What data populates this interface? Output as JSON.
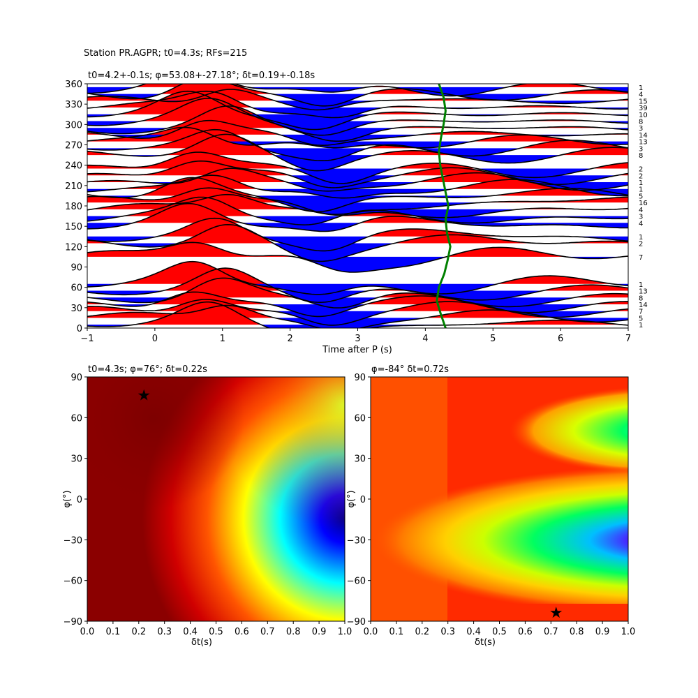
{
  "figure_title": "Station PR.AGPR; t0=4.3s; RFs=215",
  "chart_data": [
    {
      "type": "line",
      "title": "t0=4.2+-0.1s; φ=53.08+-27.18°; δt=0.19+-0.18s",
      "xlabel": "Time after P (s)",
      "ylabel": "",
      "xlim": [
        -1,
        7
      ],
      "ylim": [
        0,
        360
      ],
      "xticks": [
        "−1",
        "0",
        "1",
        "2",
        "3",
        "4",
        "5",
        "6",
        "7"
      ],
      "yticks": [
        "0",
        "30",
        "60",
        "90",
        "120",
        "150",
        "180",
        "210",
        "240",
        "270",
        "300",
        "330",
        "360"
      ],
      "positive_fill": "#ff0000",
      "negative_fill": "#0000ff",
      "trace_color": "#000000",
      "t0_curve_color": "#008000",
      "bin_backazimuths": [
        5,
        15,
        25,
        35,
        45,
        55,
        65,
        105,
        125,
        135,
        155,
        165,
        175,
        185,
        195,
        205,
        215,
        225,
        235,
        255,
        265,
        275,
        285,
        295,
        305,
        315,
        325,
        335,
        345,
        355
      ],
      "rf_counts": [
        "1",
        "5",
        "7",
        "14",
        "8",
        "13",
        "1",
        "7",
        "2",
        "1",
        "4",
        "3",
        "4",
        "16",
        "5",
        "1",
        "1",
        "2",
        "2",
        "8",
        "3",
        "13",
        "14",
        "3",
        "8",
        "10",
        "39",
        "15",
        "4",
        "1"
      ],
      "t0_curve": {
        "backazimuth": [
          0,
          20,
          40,
          60,
          80,
          100,
          120,
          140,
          160,
          180,
          200,
          220,
          240,
          260,
          280,
          300,
          320,
          340,
          360
        ],
        "time": [
          4.3,
          4.23,
          4.17,
          4.2,
          4.28,
          4.33,
          4.37,
          4.32,
          4.3,
          4.34,
          4.3,
          4.26,
          4.22,
          4.2,
          4.23,
          4.27,
          4.3,
          4.27,
          4.2
        ]
      }
    },
    {
      "type": "heatmap",
      "title": "t0=4.3s; φ=76°; δt=0.22s",
      "xlabel": "δt(s)",
      "ylabel": "φ(°)",
      "xlim": [
        0,
        1
      ],
      "ylim": [
        -90,
        90
      ],
      "xticks": [
        "0.0",
        "0.1",
        "0.2",
        "0.3",
        "0.4",
        "0.5",
        "0.6",
        "0.7",
        "0.8",
        "0.9",
        "1.0"
      ],
      "yticks": [
        "−90",
        "−60",
        "−30",
        "0",
        "30",
        "60",
        "90"
      ],
      "colormap": "jet",
      "best_fit": {
        "dt": 0.22,
        "phi": 76
      }
    },
    {
      "type": "heatmap",
      "title": "φ=-84° δt=0.72s",
      "xlabel": "δt(s)",
      "ylabel": "φ(°)",
      "xlim": [
        0,
        1
      ],
      "ylim": [
        -90,
        90
      ],
      "xticks": [
        "0.0",
        "0.1",
        "0.2",
        "0.3",
        "0.4",
        "0.5",
        "0.6",
        "0.7",
        "0.8",
        "0.9",
        "1.0"
      ],
      "yticks": [
        "−90",
        "−60",
        "−30",
        "0",
        "30",
        "60",
        "90"
      ],
      "colormap": "gist_rainbow",
      "best_fit": {
        "dt": 0.72,
        "phi": -84
      }
    }
  ]
}
